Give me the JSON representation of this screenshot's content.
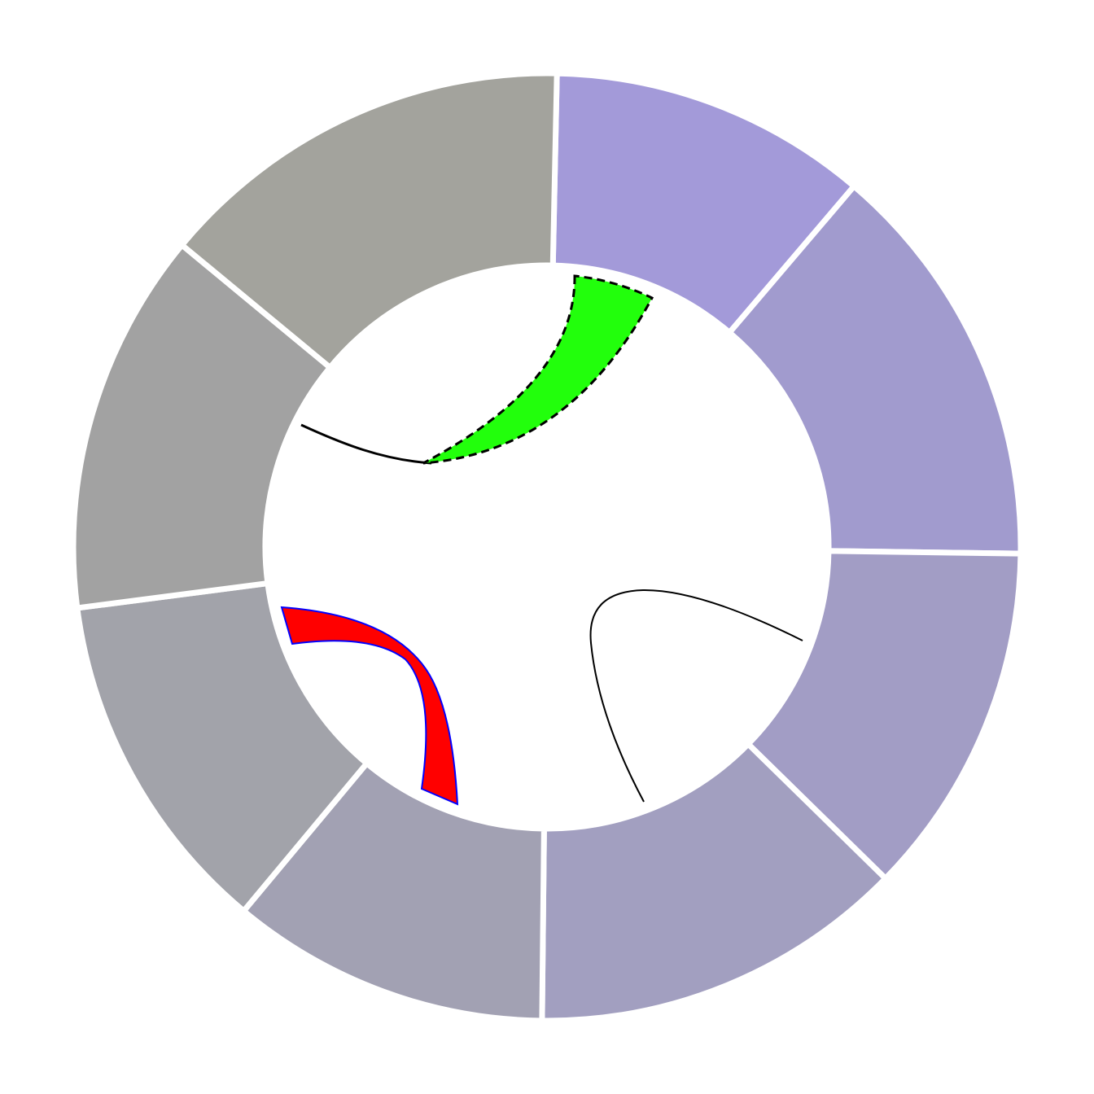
{
  "diagram": {
    "type": "chord",
    "sectors": [
      {
        "id": "sector-1",
        "color": "#a39ad9"
      },
      {
        "id": "sector-2",
        "color": "#a19bce"
      },
      {
        "id": "sector-3",
        "color": "#a29dc5"
      },
      {
        "id": "sector-4",
        "color": "#a29fc0"
      },
      {
        "id": "sector-5",
        "color": "#a2a1b3"
      },
      {
        "id": "sector-6",
        "color": "#a2a3aa"
      },
      {
        "id": "sector-7",
        "color": "#a2a2a2"
      },
      {
        "id": "sector-8",
        "color": "#a3a39d"
      }
    ],
    "links": [
      {
        "id": "link-green-ribbon",
        "fill": "#22ff0c",
        "stroke": "#000000",
        "style": "dashed",
        "kind": "ribbon"
      },
      {
        "id": "link-black-line-top",
        "stroke": "#000000",
        "kind": "line"
      },
      {
        "id": "link-red-ribbon",
        "fill": "#ff0000",
        "stroke": "#0000ff",
        "kind": "ribbon"
      },
      {
        "id": "link-black-line-right",
        "stroke": "#000000",
        "kind": "line"
      }
    ]
  }
}
